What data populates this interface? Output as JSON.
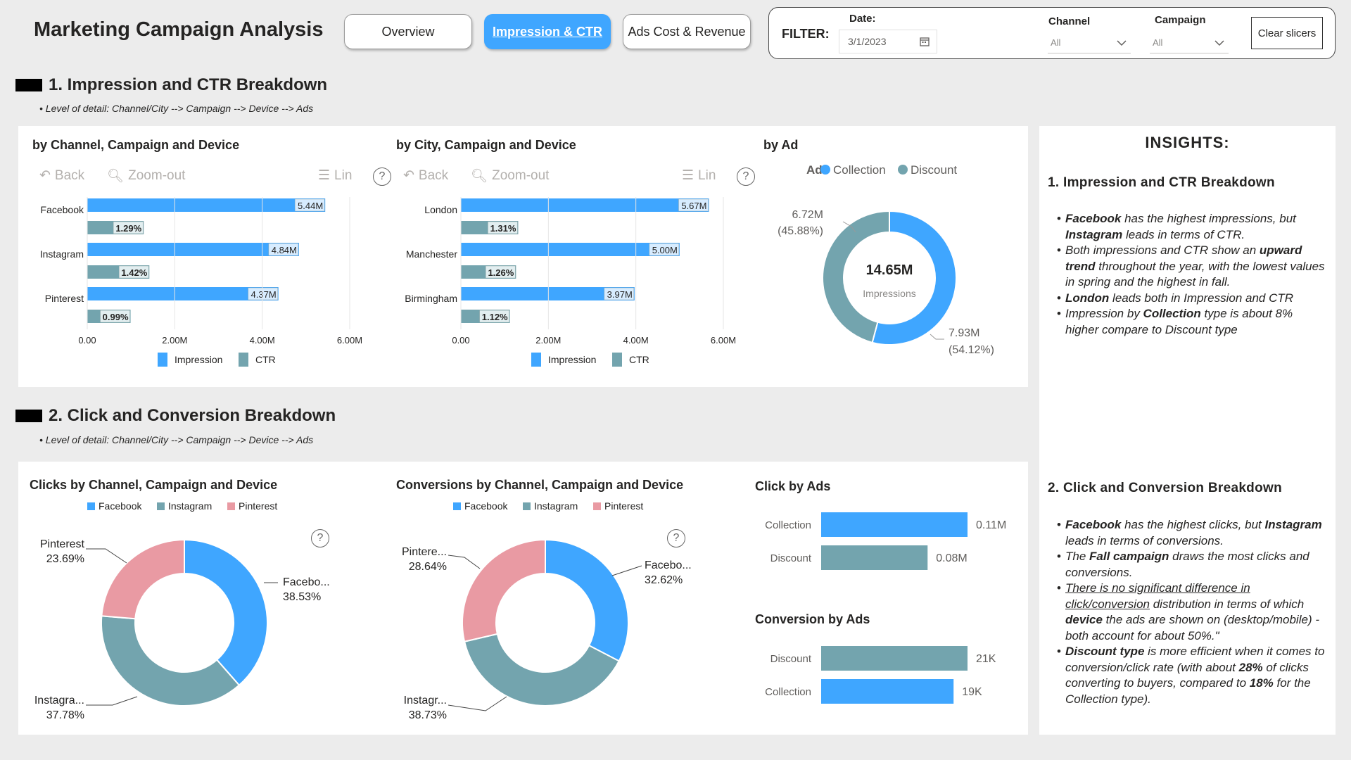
{
  "header": {
    "title": "Marketing Campaign Analysis",
    "nav": [
      "Overview",
      "Impression & CTR",
      "Ads Cost & Revenue"
    ],
    "active_tab": "Impression & CTR"
  },
  "filter": {
    "label": "FILTER:",
    "date_label": "Date:",
    "date_value": "3/1/2023",
    "channel_label": "Channel",
    "channel_value": "All",
    "campaign_label": "Campaign",
    "campaign_value": "All",
    "clear_label": "Clear slicers"
  },
  "section1": {
    "title": "1. Impression and CTR Breakdown",
    "note": "Level of detail: Channel/City --> Campaign --> Device --> Ads"
  },
  "section2": {
    "title": "2. Click and Conversion Breakdown",
    "note": "Level of detail: Channel/City --> Campaign --> Device --> Ads"
  },
  "toolbar": {
    "back": "Back",
    "zoom_out": "Zoom-out",
    "lin": "Lin",
    "help": "?"
  },
  "colors": {
    "blue": "#3fa6ff",
    "teal": "#73a4ae",
    "pink": "#e99aa3"
  },
  "chart_data": [
    {
      "id": "impr_channel",
      "type": "bar",
      "title": "by Channel, Campaign and Device",
      "categories": [
        "Facebook",
        "Instagram",
        "Pinterest"
      ],
      "series": [
        {
          "name": "Impression",
          "values": [
            5.44,
            4.84,
            4.37
          ],
          "labels": [
            "5.44M",
            "4.84M",
            "4.37M"
          ]
        },
        {
          "name": "CTR",
          "values": [
            1.29,
            1.42,
            0.99
          ],
          "labels": [
            "1.29%",
            "1.42%",
            "0.99%"
          ]
        }
      ],
      "xlim": [
        0,
        6
      ],
      "ticks": [
        "0.00",
        "2.00M",
        "4.00M",
        "6.00M"
      ],
      "legend": "bottom"
    },
    {
      "id": "impr_city",
      "type": "bar",
      "title": "by City, Campaign and Device",
      "categories": [
        "London",
        "Manchester",
        "Birmingham"
      ],
      "series": [
        {
          "name": "Impression",
          "values": [
            5.67,
            5.0,
            3.97
          ],
          "labels": [
            "5.67M",
            "5.00M",
            "3.97M"
          ]
        },
        {
          "name": "CTR",
          "values": [
            1.31,
            1.26,
            1.12
          ],
          "labels": [
            "1.31%",
            "1.26%",
            "1.12%"
          ]
        }
      ],
      "xlim": [
        0,
        6
      ],
      "ticks": [
        "0.00",
        "2.00M",
        "4.00M",
        "6.00M"
      ],
      "legend": "bottom"
    },
    {
      "id": "impr_ad",
      "type": "pie",
      "title": "by Ad",
      "legend_title": "Ad",
      "categories": [
        "Collection",
        "Discount"
      ],
      "values": [
        7.93,
        6.72
      ],
      "value_labels": [
        "7.93M",
        "6.72M"
      ],
      "percent_labels": [
        "(54.12%)",
        "(45.88%)"
      ],
      "center_value": "14.65M",
      "center_label": "Impressions",
      "legend": "top"
    },
    {
      "id": "clicks_channel",
      "type": "pie",
      "title": "Clicks by Channel, Campaign and Device",
      "categories": [
        "Facebook",
        "Instagram",
        "Pinterest"
      ],
      "values": [
        38.53,
        37.78,
        23.69
      ],
      "slice_labels": [
        "Facebo...",
        "Instagra...",
        "Pinterest"
      ],
      "percent_labels": [
        "38.53%",
        "37.78%",
        "23.69%"
      ],
      "legend": "top"
    },
    {
      "id": "conv_channel",
      "type": "pie",
      "title": "Conversions by Channel, Campaign and Device",
      "categories": [
        "Facebook",
        "Instagram",
        "Pinterest"
      ],
      "values": [
        32.62,
        38.73,
        28.64
      ],
      "slice_labels": [
        "Facebo...",
        "Instagr...",
        "Pintere..."
      ],
      "percent_labels": [
        "32.62%",
        "38.73%",
        "28.64%"
      ],
      "legend": "top"
    },
    {
      "id": "click_ads",
      "type": "bar",
      "title": "Click by Ads",
      "categories": [
        "Collection",
        "Discount"
      ],
      "values": [
        0.11,
        0.08
      ],
      "labels": [
        "0.11M",
        "0.08M"
      ]
    },
    {
      "id": "conv_ads",
      "type": "bar",
      "title": "Conversion by Ads",
      "categories": [
        "Discount",
        "Collection"
      ],
      "values": [
        21,
        19
      ],
      "labels": [
        "21K",
        "19K"
      ]
    }
  ],
  "insights": {
    "title": "INSIGHTS:",
    "s1_title": "1. Impression and CTR Breakdown",
    "s1": {
      "b1_bold1": "Facebook",
      "b1_t1": " has the highest impressions, but ",
      "b1_bold2": "Instagram",
      "b1_t2": " leads in terms of CTR.",
      "b2_t1": "Both impressions and CTR show an ",
      "b2_bold1": "upward trend",
      "b2_t2": " throughout the year, with the lowest values in spring and the highest in fall.",
      "b3_bold1": "London",
      "b3_t1": " leads both in Impression and CTR",
      "b4_t1": "Impression by ",
      "b4_bold1": "Collection",
      "b4_t2": " type is about 8% higher compare to Discount type"
    },
    "s2_title": "2. Click and Conversion Breakdown",
    "s2": {
      "b1_bold1": "Facebook",
      "b1_t1": " has the highest clicks, but ",
      "b1_bold2": "Instagram",
      "b1_t2": " leads in terms of conversions.",
      "b2_t1": "The ",
      "b2_bold1": "Fall campaign",
      "b2_t2": " draws the most clicks and conversions.",
      "b3_u1": "There is no significant difference in click/conversion",
      "b3_t1": " distribution in terms of which ",
      "b3_bold1": "device",
      "b3_t2": " the ads are shown on (desktop/mobile) - both account for about 50%.\"",
      "b4_bold1": "Discount type",
      "b4_t1": " is more efficient when it comes to conversion/click rate (with about ",
      "b4_bold2": "28%",
      "b4_t2": " of clicks converting to buyers, compared to ",
      "b4_bold3": "18%",
      "b4_t3": " for the Collection type)."
    }
  }
}
